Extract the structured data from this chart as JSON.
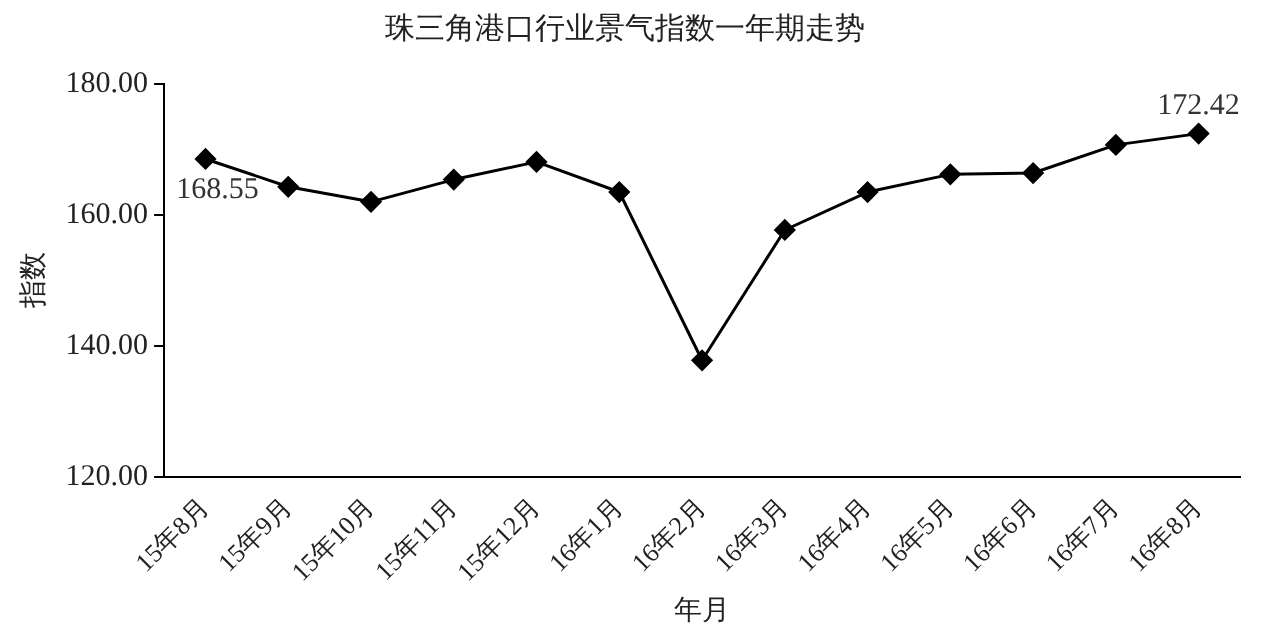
{
  "chart_data": {
    "type": "line",
    "title": "珠三角港口行业景气指数一年期走势",
    "xlabel": "年月",
    "ylabel": "指数",
    "categories": [
      "15年8月",
      "15年9月",
      "15年10月",
      "15年11月",
      "15年12月",
      "16年1月",
      "16年2月",
      "16年3月",
      "16年4月",
      "16年5月",
      "16年6月",
      "16年7月",
      "16年8月"
    ],
    "series": [
      {
        "color": "#000000",
        "values": [
          168.55,
          164.3,
          162.0,
          165.4,
          168.1,
          163.5,
          137.8,
          157.7,
          163.5,
          166.2,
          166.4,
          170.7,
          172.42
        ],
        "value_labels": [
          "168.55",
          null,
          null,
          null,
          null,
          null,
          null,
          null,
          null,
          null,
          null,
          null,
          "172.42"
        ]
      }
    ],
    "ylim": [
      120,
      180
    ],
    "yticks": [
      {
        "value": 120,
        "label": "120.00"
      },
      {
        "value": 140,
        "label": "140.00"
      },
      {
        "value": 160,
        "label": "160.00"
      },
      {
        "value": 180,
        "label": "180.00"
      }
    ],
    "grid": false,
    "legend": false,
    "marker": "diamond",
    "line_style": "solid"
  }
}
